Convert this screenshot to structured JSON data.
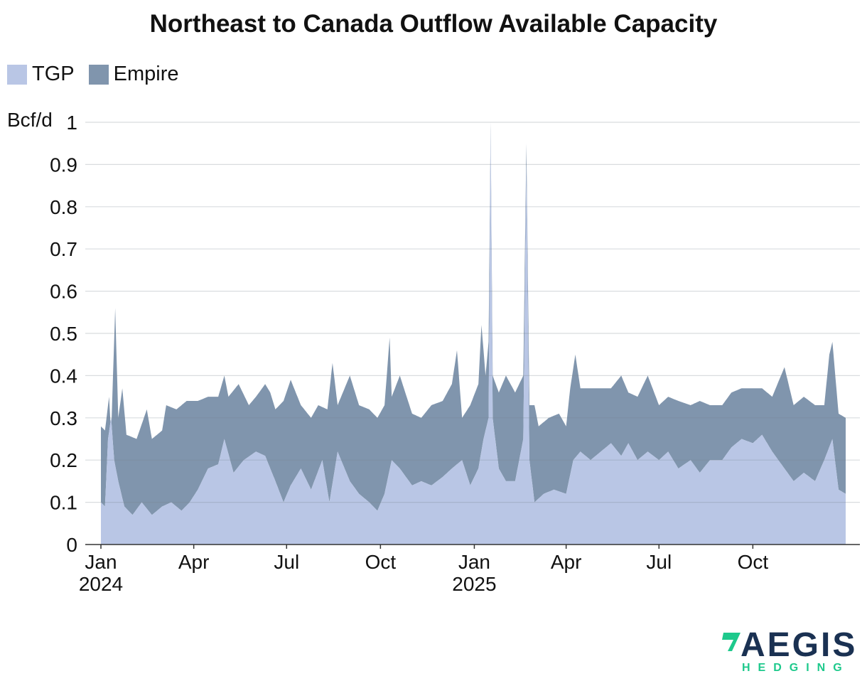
{
  "chart_data": {
    "type": "area",
    "stacked": true,
    "title": "Northeast to Canada Outflow Available Capacity",
    "ylabel": "Bcf/d",
    "ylim": [
      0,
      1
    ],
    "yticks": [
      0,
      0.1,
      0.2,
      0.3,
      0.4,
      0.5,
      0.6,
      0.7,
      0.8,
      0.9,
      1
    ],
    "ytick_labels": [
      "0",
      "0.1",
      "0.2",
      "0.3",
      "0.4",
      "0.5",
      "0.6",
      "0.7",
      "0.8",
      "0.9",
      "1"
    ],
    "grid": true,
    "legend_position": "top-left",
    "x_start": "2024-01-01",
    "x_end": "2025-12-31",
    "xtick_labels": [
      {
        "date": "2024-01-01",
        "line1": "Jan",
        "line2": "2024"
      },
      {
        "date": "2024-04-01",
        "line1": "Apr",
        "line2": ""
      },
      {
        "date": "2024-07-01",
        "line1": "Jul",
        "line2": ""
      },
      {
        "date": "2024-10-01",
        "line1": "Oct",
        "line2": ""
      },
      {
        "date": "2025-01-01",
        "line1": "Jan",
        "line2": "2025"
      },
      {
        "date": "2025-04-01",
        "line1": "Apr",
        "line2": ""
      },
      {
        "date": "2025-07-01",
        "line1": "Jul",
        "line2": ""
      },
      {
        "date": "2025-10-01",
        "line1": "Oct",
        "line2": ""
      }
    ],
    "series": [
      {
        "name": "TGP",
        "color": "#b9c6e5",
        "points": [
          [
            "2024-01-01",
            0.1
          ],
          [
            "2024-01-05",
            0.09
          ],
          [
            "2024-01-08",
            0.25
          ],
          [
            "2024-01-11",
            0.3
          ],
          [
            "2024-01-14",
            0.2
          ],
          [
            "2024-01-18",
            0.15
          ],
          [
            "2024-01-24",
            0.09
          ],
          [
            "2024-02-01",
            0.07
          ],
          [
            "2024-02-10",
            0.1
          ],
          [
            "2024-02-20",
            0.07
          ],
          [
            "2024-03-01",
            0.09
          ],
          [
            "2024-03-10",
            0.1
          ],
          [
            "2024-03-20",
            0.08
          ],
          [
            "2024-03-28",
            0.1
          ],
          [
            "2024-04-05",
            0.13
          ],
          [
            "2024-04-15",
            0.18
          ],
          [
            "2024-04-25",
            0.19
          ],
          [
            "2024-05-01",
            0.25
          ],
          [
            "2024-05-10",
            0.17
          ],
          [
            "2024-05-20",
            0.2
          ],
          [
            "2024-06-01",
            0.22
          ],
          [
            "2024-06-10",
            0.21
          ],
          [
            "2024-06-20",
            0.15
          ],
          [
            "2024-06-28",
            0.1
          ],
          [
            "2024-07-05",
            0.14
          ],
          [
            "2024-07-15",
            0.18
          ],
          [
            "2024-07-25",
            0.13
          ],
          [
            "2024-08-05",
            0.2
          ],
          [
            "2024-08-12",
            0.1
          ],
          [
            "2024-08-20",
            0.22
          ],
          [
            "2024-09-01",
            0.15
          ],
          [
            "2024-09-10",
            0.12
          ],
          [
            "2024-09-20",
            0.1
          ],
          [
            "2024-09-28",
            0.08
          ],
          [
            "2024-10-05",
            0.12
          ],
          [
            "2024-10-12",
            0.2
          ],
          [
            "2024-10-20",
            0.18
          ],
          [
            "2024-11-01",
            0.14
          ],
          [
            "2024-11-10",
            0.15
          ],
          [
            "2024-11-20",
            0.14
          ],
          [
            "2024-12-01",
            0.16
          ],
          [
            "2024-12-10",
            0.18
          ],
          [
            "2024-12-20",
            0.2
          ],
          [
            "2024-12-28",
            0.14
          ],
          [
            "2025-01-05",
            0.18
          ],
          [
            "2025-01-10",
            0.25
          ],
          [
            "2025-01-15",
            0.3
          ],
          [
            "2025-01-17",
            0.98
          ],
          [
            "2025-01-19",
            0.3
          ],
          [
            "2025-01-25",
            0.18
          ],
          [
            "2025-02-01",
            0.15
          ],
          [
            "2025-02-10",
            0.15
          ],
          [
            "2025-02-18",
            0.25
          ],
          [
            "2025-02-21",
            0.9
          ],
          [
            "2025-02-24",
            0.2
          ],
          [
            "2025-03-01",
            0.1
          ],
          [
            "2025-03-10",
            0.12
          ],
          [
            "2025-03-20",
            0.13
          ],
          [
            "2025-04-01",
            0.12
          ],
          [
            "2025-04-08",
            0.2
          ],
          [
            "2025-04-15",
            0.22
          ],
          [
            "2025-04-25",
            0.2
          ],
          [
            "2025-05-05",
            0.22
          ],
          [
            "2025-05-15",
            0.24
          ],
          [
            "2025-05-25",
            0.21
          ],
          [
            "2025-06-01",
            0.24
          ],
          [
            "2025-06-10",
            0.2
          ],
          [
            "2025-06-20",
            0.22
          ],
          [
            "2025-07-01",
            0.2
          ],
          [
            "2025-07-10",
            0.22
          ],
          [
            "2025-07-20",
            0.18
          ],
          [
            "2025-08-01",
            0.2
          ],
          [
            "2025-08-10",
            0.17
          ],
          [
            "2025-08-20",
            0.2
          ],
          [
            "2025-09-01",
            0.2
          ],
          [
            "2025-09-10",
            0.23
          ],
          [
            "2025-09-20",
            0.25
          ],
          [
            "2025-10-01",
            0.24
          ],
          [
            "2025-10-10",
            0.26
          ],
          [
            "2025-10-20",
            0.22
          ],
          [
            "2025-11-01",
            0.18
          ],
          [
            "2025-11-10",
            0.15
          ],
          [
            "2025-11-20",
            0.17
          ],
          [
            "2025-12-01",
            0.15
          ],
          [
            "2025-12-10",
            0.2
          ],
          [
            "2025-12-18",
            0.25
          ],
          [
            "2025-12-24",
            0.13
          ],
          [
            "2025-12-31",
            0.12
          ]
        ]
      },
      {
        "name": "Empire",
        "color": "#8095ad",
        "total_points": [
          [
            "2024-01-01",
            0.28
          ],
          [
            "2024-01-05",
            0.27
          ],
          [
            "2024-01-09",
            0.35
          ],
          [
            "2024-01-11",
            0.26
          ],
          [
            "2024-01-15",
            0.56
          ],
          [
            "2024-01-18",
            0.3
          ],
          [
            "2024-01-22",
            0.37
          ],
          [
            "2024-01-26",
            0.26
          ],
          [
            "2024-02-05",
            0.25
          ],
          [
            "2024-02-15",
            0.32
          ],
          [
            "2024-02-20",
            0.25
          ],
          [
            "2024-03-01",
            0.27
          ],
          [
            "2024-03-05",
            0.33
          ],
          [
            "2024-03-15",
            0.32
          ],
          [
            "2024-03-25",
            0.34
          ],
          [
            "2024-04-05",
            0.34
          ],
          [
            "2024-04-15",
            0.35
          ],
          [
            "2024-04-25",
            0.35
          ],
          [
            "2024-05-01",
            0.4
          ],
          [
            "2024-05-05",
            0.35
          ],
          [
            "2024-05-15",
            0.38
          ],
          [
            "2024-05-25",
            0.33
          ],
          [
            "2024-06-01",
            0.35
          ],
          [
            "2024-06-10",
            0.38
          ],
          [
            "2024-06-15",
            0.36
          ],
          [
            "2024-06-20",
            0.32
          ],
          [
            "2024-06-28",
            0.34
          ],
          [
            "2024-07-05",
            0.39
          ],
          [
            "2024-07-15",
            0.33
          ],
          [
            "2024-07-25",
            0.3
          ],
          [
            "2024-08-01",
            0.33
          ],
          [
            "2024-08-10",
            0.32
          ],
          [
            "2024-08-15",
            0.43
          ],
          [
            "2024-08-20",
            0.33
          ],
          [
            "2024-09-01",
            0.4
          ],
          [
            "2024-09-10",
            0.33
          ],
          [
            "2024-09-20",
            0.32
          ],
          [
            "2024-09-28",
            0.3
          ],
          [
            "2024-10-05",
            0.33
          ],
          [
            "2024-10-10",
            0.49
          ],
          [
            "2024-10-12",
            0.35
          ],
          [
            "2024-10-20",
            0.4
          ],
          [
            "2024-11-01",
            0.31
          ],
          [
            "2024-11-10",
            0.3
          ],
          [
            "2024-11-20",
            0.33
          ],
          [
            "2024-12-01",
            0.34
          ],
          [
            "2024-12-10",
            0.38
          ],
          [
            "2024-12-15",
            0.46
          ],
          [
            "2024-12-20",
            0.3
          ],
          [
            "2024-12-28",
            0.33
          ],
          [
            "2025-01-05",
            0.38
          ],
          [
            "2025-01-08",
            0.52
          ],
          [
            "2025-01-12",
            0.4
          ],
          [
            "2025-01-15",
            0.48
          ],
          [
            "2025-01-17",
            1.0
          ],
          [
            "2025-01-19",
            0.4
          ],
          [
            "2025-01-25",
            0.36
          ],
          [
            "2025-02-01",
            0.4
          ],
          [
            "2025-02-10",
            0.36
          ],
          [
            "2025-02-18",
            0.4
          ],
          [
            "2025-02-21",
            0.95
          ],
          [
            "2025-02-24",
            0.33
          ],
          [
            "2025-03-01",
            0.33
          ],
          [
            "2025-03-05",
            0.28
          ],
          [
            "2025-03-15",
            0.3
          ],
          [
            "2025-03-25",
            0.31
          ],
          [
            "2025-04-01",
            0.28
          ],
          [
            "2025-04-05",
            0.37
          ],
          [
            "2025-04-10",
            0.45
          ],
          [
            "2025-04-15",
            0.37
          ],
          [
            "2025-04-25",
            0.37
          ],
          [
            "2025-05-05",
            0.37
          ],
          [
            "2025-05-15",
            0.37
          ],
          [
            "2025-05-25",
            0.4
          ],
          [
            "2025-06-01",
            0.36
          ],
          [
            "2025-06-10",
            0.35
          ],
          [
            "2025-06-20",
            0.4
          ],
          [
            "2025-07-01",
            0.33
          ],
          [
            "2025-07-10",
            0.35
          ],
          [
            "2025-07-20",
            0.34
          ],
          [
            "2025-08-01",
            0.33
          ],
          [
            "2025-08-10",
            0.34
          ],
          [
            "2025-08-20",
            0.33
          ],
          [
            "2025-09-01",
            0.33
          ],
          [
            "2025-09-10",
            0.36
          ],
          [
            "2025-09-20",
            0.37
          ],
          [
            "2025-10-01",
            0.37
          ],
          [
            "2025-10-10",
            0.37
          ],
          [
            "2025-10-20",
            0.35
          ],
          [
            "2025-11-01",
            0.42
          ],
          [
            "2025-11-10",
            0.33
          ],
          [
            "2025-11-20",
            0.35
          ],
          [
            "2025-12-01",
            0.33
          ],
          [
            "2025-12-10",
            0.33
          ],
          [
            "2025-12-15",
            0.45
          ],
          [
            "2025-12-18",
            0.48
          ],
          [
            "2025-12-24",
            0.31
          ],
          [
            "2025-12-31",
            0.3
          ]
        ]
      }
    ]
  },
  "legend": {
    "items": [
      {
        "label": "TGP",
        "color": "#b9c6e5"
      },
      {
        "label": "Empire",
        "color": "#8095ad"
      }
    ]
  },
  "logo": {
    "word": "AEGIS",
    "sub": "HEDGING"
  }
}
